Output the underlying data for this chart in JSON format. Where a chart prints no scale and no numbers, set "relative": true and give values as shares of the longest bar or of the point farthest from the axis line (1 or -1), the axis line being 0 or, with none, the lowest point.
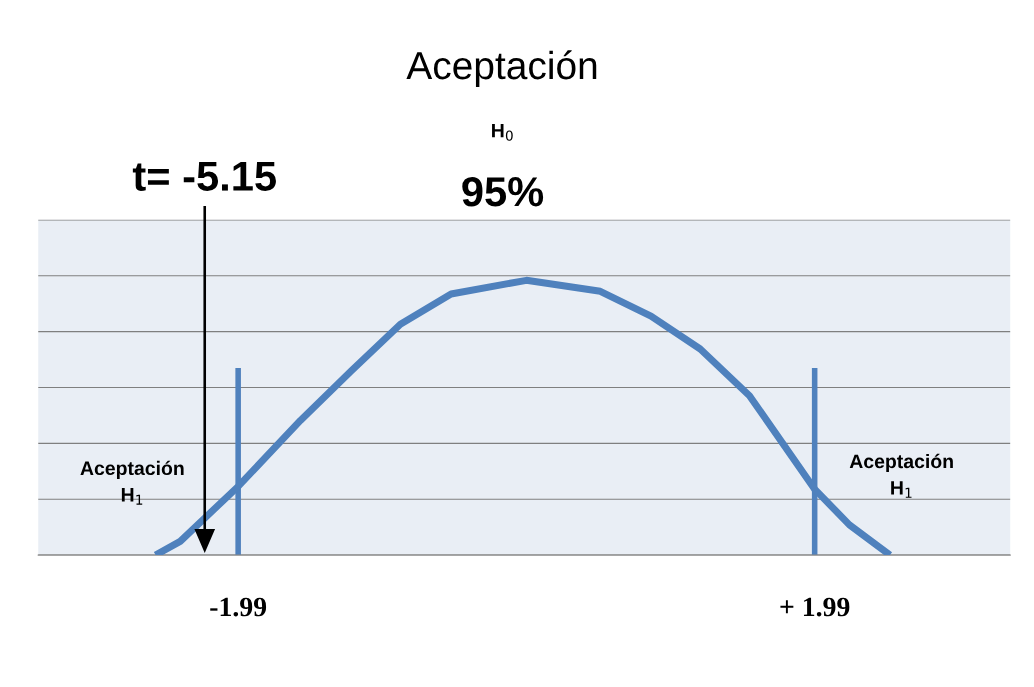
{
  "chart_data": {
    "type": "line",
    "title": "Aceptación",
    "subtitle": "H$_{0}$",
    "annotations": [
      "95%",
      "t= -5.15",
      "Aceptación\nH$_{1}$",
      "Aceptación\nH$_{1}$"
    ],
    "x": [
      -2.56,
      -2.39,
      -1.99,
      -1.56,
      -1.21,
      -0.87,
      -0.52,
      0,
      0.51,
      0.86,
      1.2,
      1.54,
      1.99,
      2.23,
      2.51
    ],
    "series": [
      {
        "color": "#4f81bd",
        "values": [
          0,
          0.05,
          0.25,
          0.49,
          0.67,
          0.84,
          0.95,
          1,
          0.96,
          0.87,
          0.75,
          0.58,
          0.24,
          0.11,
          0
        ]
      }
    ],
    "relative": true,
    "xlim": [
      -3.37,
      3.34
    ],
    "xticks": [
      {
        "value": -1.99,
        "label": "-1.99"
      },
      {
        "value": 1.99,
        "label": "+ 1.99"
      }
    ],
    "ref_lines": [
      {
        "axis": "x",
        "value": -1.99,
        "color": "#4f81bd"
      },
      {
        "axis": "x",
        "value": 1.99,
        "color": "#4f81bd"
      }
    ],
    "grid": "y",
    "legend": false,
    "marker": "none",
    "line_style": "solid"
  }
}
